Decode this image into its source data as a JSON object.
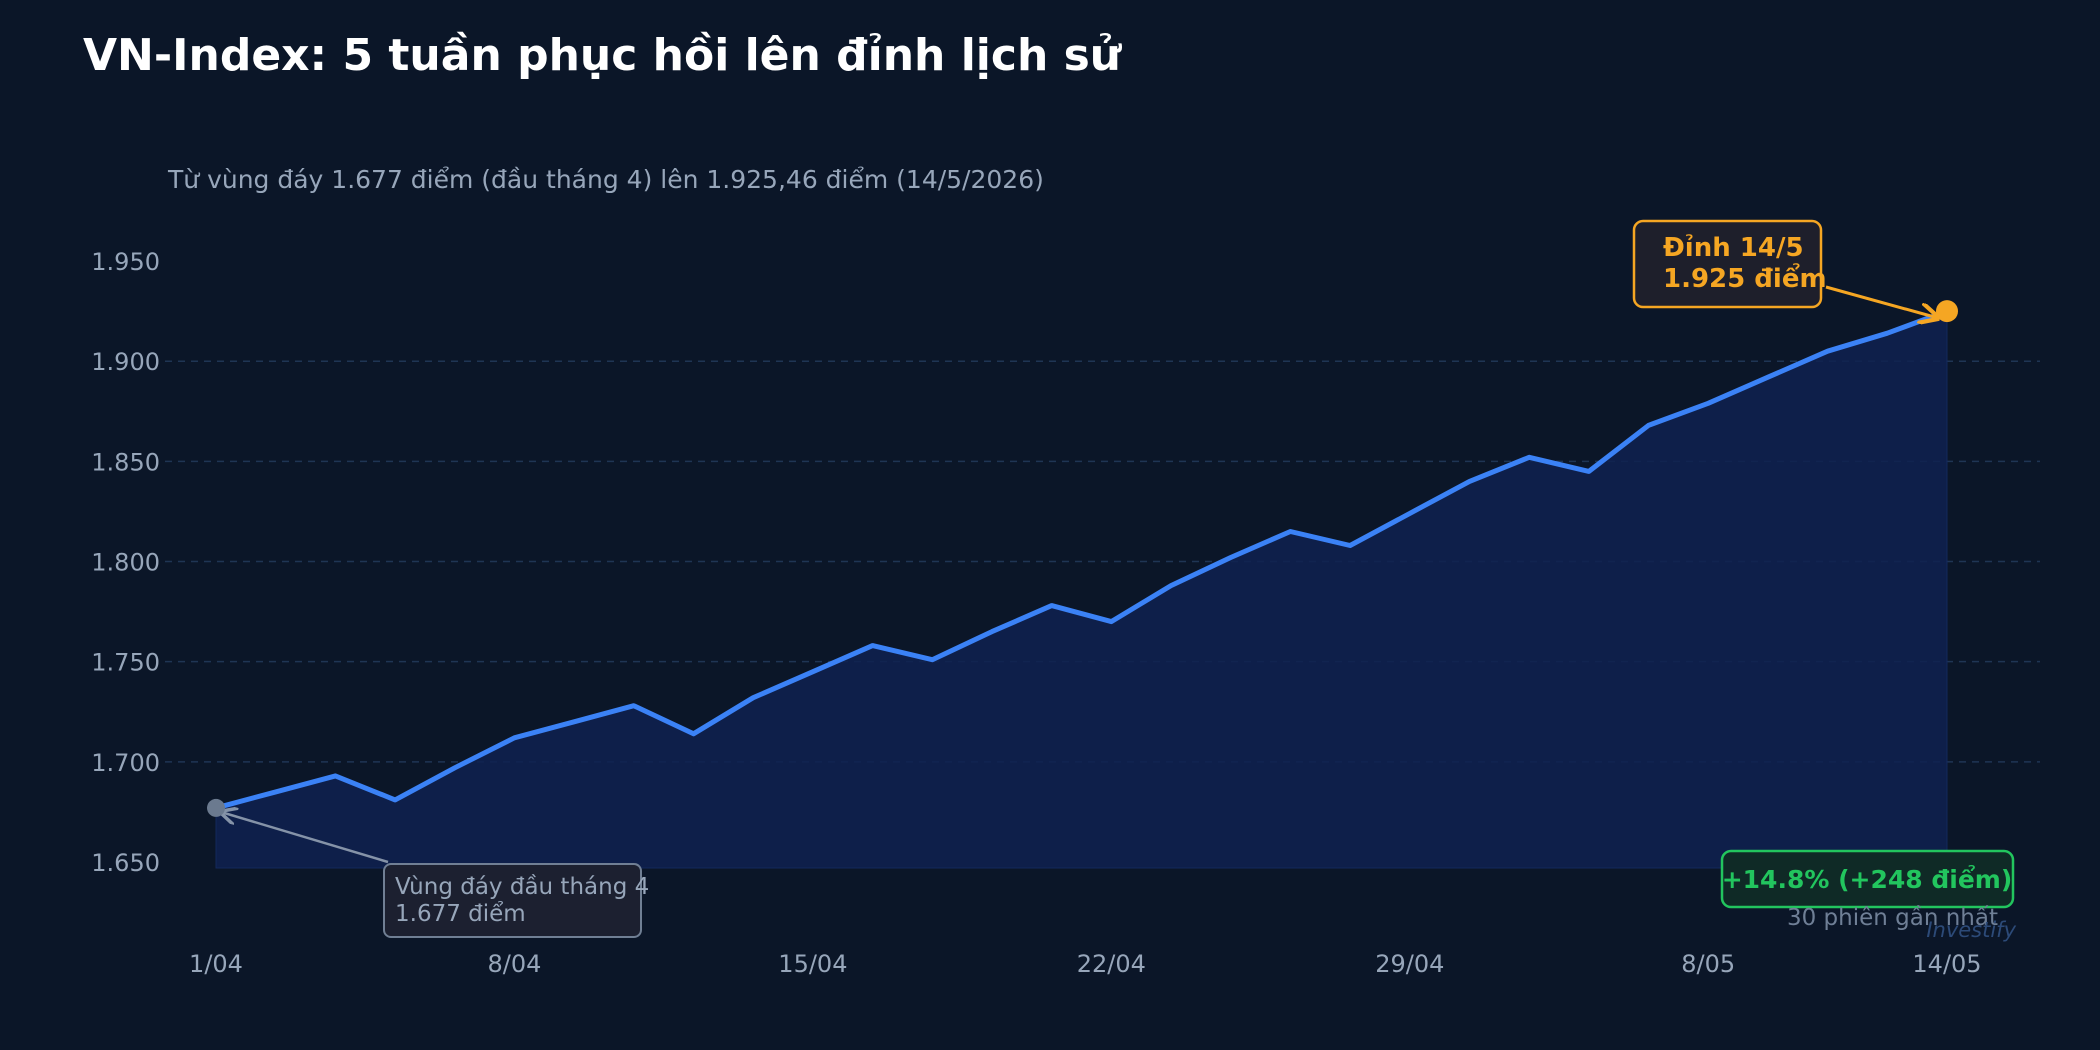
{
  "colors": {
    "background": "#0b1628",
    "line": "#3b82f6",
    "area": "#0f2150",
    "peak": "#f5a623",
    "low": "#6b7a8f",
    "positive": "#22c55e",
    "grid": "#1f3554",
    "text_muted": "#97a6ba"
  },
  "chart_data": {
    "type": "area",
    "title": "VN-Index: 5 tuần phục hồi lên đỉnh lịch sử",
    "subtitle": "Từ vùng đáy 1.677 điểm (đầu tháng 4) lên 1.925,46 điểm (14/5/2026)",
    "xlabel": "",
    "ylabel": "",
    "ylim": [
      1647,
      1962
    ],
    "y_ticks": [
      1650,
      1700,
      1750,
      1800,
      1850,
      1900,
      1950
    ],
    "y_tick_labels": [
      "1.650",
      "1.700",
      "1.750",
      "1.800",
      "1.850",
      "1.900",
      "1.950"
    ],
    "x_tick_labels": [
      "1/04",
      "8/04",
      "15/04",
      "22/04",
      "29/04",
      "8/05",
      "14/05"
    ],
    "x_tick_sessions": [
      0,
      5,
      10,
      15,
      20,
      25,
      29
    ],
    "grid": "horizontal dashed",
    "series": [
      {
        "values": [
          1677,
          1685,
          1693,
          1681,
          1697,
          1712,
          1720,
          1728,
          1714,
          1732,
          1745,
          1758,
          1751,
          1765,
          1778,
          1770,
          1788,
          1802,
          1815,
          1808,
          1824,
          1840,
          1852,
          1845,
          1868,
          1879,
          1892,
          1905,
          1914,
          1925
        ]
      }
    ],
    "annotations": {
      "peak": {
        "line1": "Đỉnh 14/5",
        "line2": "1.925 điểm",
        "value": 1925,
        "session": 29
      },
      "low": {
        "line1": "Vùng đáy đầu tháng 4",
        "line2": "1.677 điểm",
        "value": 1677,
        "session": 0
      }
    },
    "summary": {
      "change": "+14.8%  (+248 điểm)",
      "sessions": "30 phiên gần nhất"
    },
    "watermark": "Investify"
  }
}
